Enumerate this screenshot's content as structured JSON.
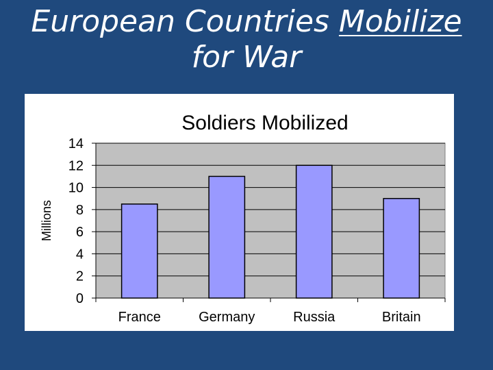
{
  "slide": {
    "title_part1": "European Countries ",
    "title_underlined": "Mobilize",
    "title_part2": "for War"
  },
  "chart_data": {
    "type": "bar",
    "title": "Soldiers Mobilized",
    "xlabel": "",
    "ylabel": "Millions",
    "categories": [
      "France",
      "Germany",
      "Russia",
      "Britain"
    ],
    "values": [
      8.5,
      11,
      12,
      9
    ],
    "ylim": [
      0,
      14
    ],
    "yticks": [
      "0",
      "2",
      "4",
      "6",
      "8",
      "10",
      "12",
      "14"
    ],
    "grid": true,
    "legend": "none",
    "colors": {
      "bar_fill": "#9999ff",
      "plot_background": "#c0c0c0",
      "frame_background": "#ffffff",
      "slide_background": "#1f497d"
    }
  }
}
